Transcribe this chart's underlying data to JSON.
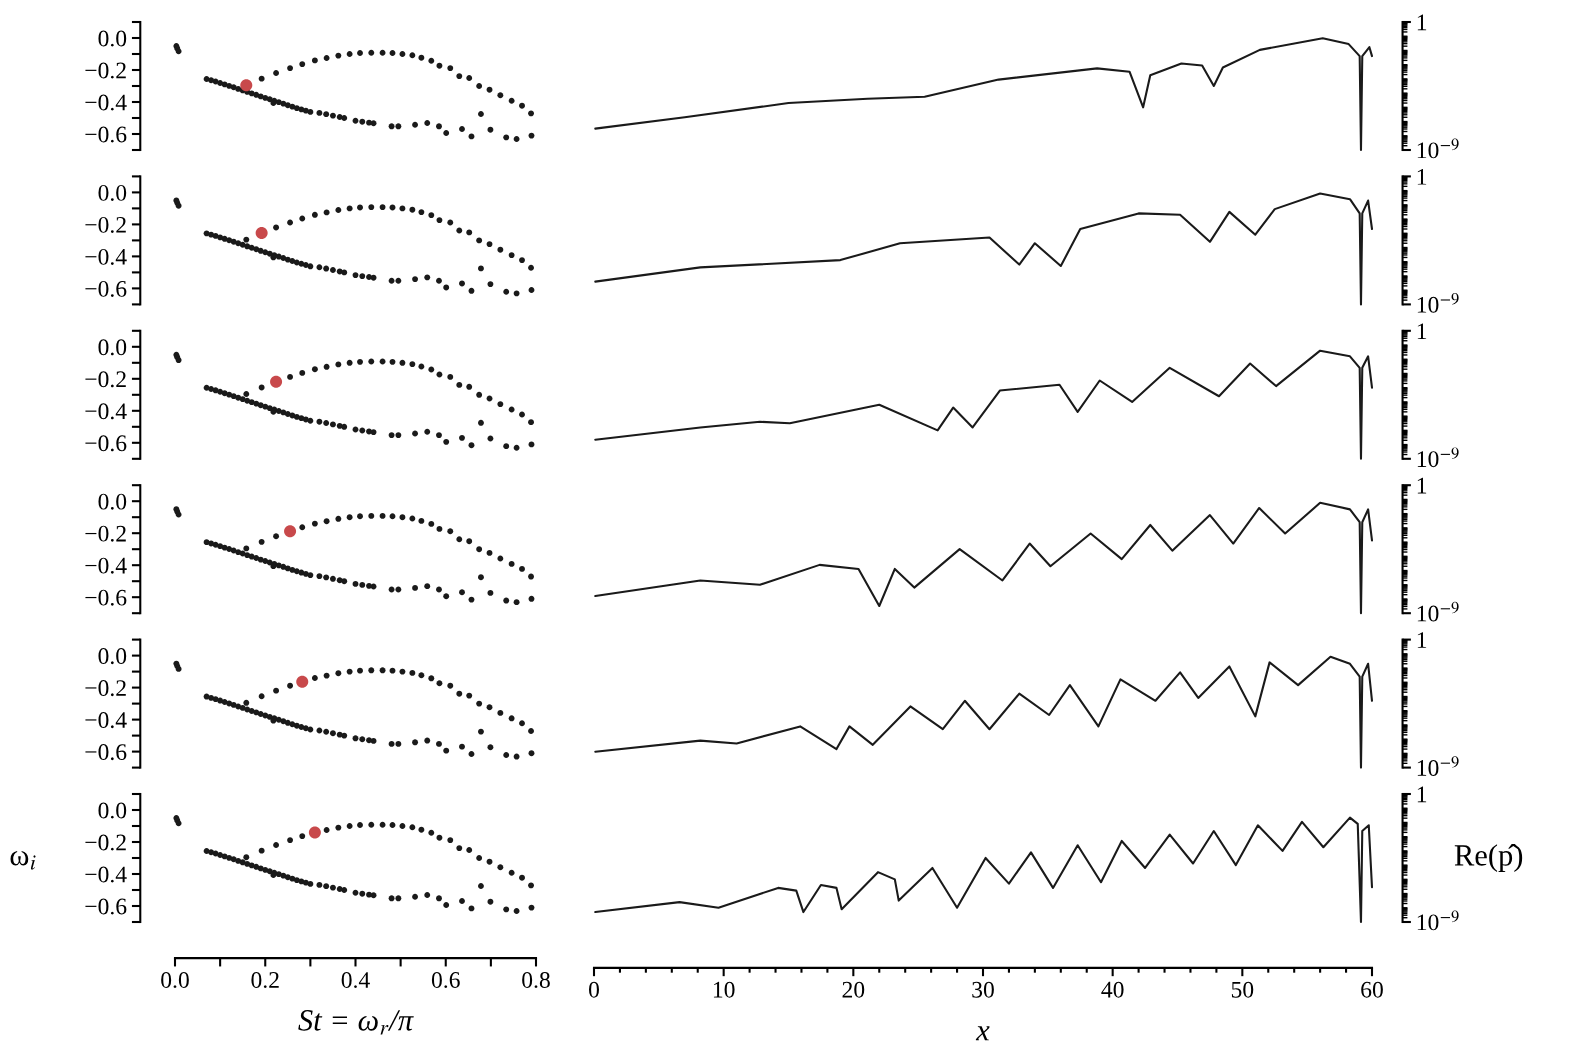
{
  "chart_data": [
    {
      "type": "scatter",
      "marker": "circle",
      "tick_labels": "y",
      "xlim": [
        0,
        0.8
      ],
      "ylim": [
        -0.7,
        0.1
      ],
      "yticks": [
        {
          "value": -0.6,
          "label": "−0.6"
        },
        {
          "value": -0.4,
          "label": "−0.4"
        },
        {
          "value": -0.2,
          "label": "−0.2"
        },
        {
          "value": 0,
          "label": "0.0"
        }
      ],
      "series": [
        {
          "color": "#1a1a1a",
          "x": [
            0.003,
            0.005,
            0.008,
            0.07,
            0.08,
            0.09,
            0.1,
            0.11,
            0.12,
            0.13,
            0.14,
            0.15,
            0.16,
            0.17,
            0.18,
            0.19,
            0.2,
            0.21,
            0.22,
            0.23,
            0.24,
            0.25,
            0.26,
            0.27,
            0.28,
            0.29,
            0.3,
            0.218,
            0.32,
            0.335,
            0.35,
            0.365,
            0.375,
            0.4,
            0.415,
            0.43,
            0.44,
            0.48,
            0.495,
            0.532,
            0.559,
            0.585,
            0.601,
            0.636,
            0.657,
            0.678,
            0.699,
            0.734,
            0.757,
            0.79,
            0.192,
            0.224,
            0.255,
            0.282,
            0.31,
            0.336,
            0.362,
            0.387,
            0.41,
            0.435,
            0.46,
            0.482,
            0.504,
            0.526,
            0.546,
            0.568,
            0.586,
            0.61,
            0.63,
            0.652,
            0.674,
            0.697,
            0.721,
            0.746,
            0.769,
            0.789
          ],
          "values": [
            -0.05,
            -0.065,
            -0.083,
            -0.256,
            -0.264,
            -0.272,
            -0.281,
            -0.29,
            -0.299,
            -0.308,
            -0.318,
            -0.327,
            -0.337,
            -0.346,
            -0.355,
            -0.365,
            -0.374,
            -0.383,
            -0.392,
            -0.401,
            -0.41,
            -0.42,
            -0.429,
            -0.438,
            -0.446,
            -0.454,
            -0.462,
            -0.406,
            -0.468,
            -0.476,
            -0.485,
            -0.494,
            -0.5,
            -0.517,
            -0.523,
            -0.529,
            -0.533,
            -0.552,
            -0.552,
            -0.542,
            -0.531,
            -0.552,
            -0.594,
            -0.569,
            -0.615,
            -0.475,
            -0.573,
            -0.621,
            -0.631,
            -0.61,
            -0.254,
            -0.219,
            -0.188,
            -0.163,
            -0.14,
            -0.125,
            -0.11,
            -0.1,
            -0.094,
            -0.092,
            -0.092,
            -0.094,
            -0.1,
            -0.108,
            -0.123,
            -0.142,
            -0.173,
            -0.188,
            -0.238,
            -0.25,
            -0.3,
            -0.323,
            -0.358,
            -0.392,
            -0.423,
            -0.471
          ]
        },
        {
          "color": "#c8494b",
          "x": [
            0.158
          ],
          "values": [
            -0.295
          ]
        }
      ]
    },
    {
      "type": "line",
      "log": "y",
      "line_style": "solid",
      "tick_labels": "y",
      "xlim": [
        0,
        60
      ],
      "ylim": [
        1e-09,
        1
      ],
      "yticks": [
        {
          "value": 1,
          "label": "1"
        },
        {
          "value": 1e-09,
          "label": "10$^{−9}$"
        }
      ],
      "series": [
        {
          "color": "#1a1a1a",
          "x": [
            0.1,
            7.0,
            15.0,
            21.1,
            25.5,
            31.2,
            38.8,
            41.3,
            42.35,
            42.9,
            45.3,
            46.9,
            47.8,
            48.5,
            51.35,
            56.2,
            58.2,
            59.05,
            59.15,
            59.25,
            59.8,
            60
          ],
          "values": [
            3.2e-08,
            2e-07,
            2e-06,
            4e-06,
            5.6e-06,
            8.9e-05,
            0.00055,
            0.00032,
            1e-06,
            0.00018,
            0.0012,
            0.00087,
            3.2e-05,
            0.00063,
            0.011,
            0.072,
            0.028,
            0.004,
            1e-09,
            0.004,
            0.017,
            0.004
          ]
        }
      ]
    },
    {
      "type": "scatter",
      "marker": "circle",
      "tick_labels": "y",
      "xlim": [
        0,
        0.8
      ],
      "ylim": [
        -0.7,
        0.1
      ],
      "yticks": [
        {
          "value": -0.6,
          "label": "−0.6"
        },
        {
          "value": -0.4,
          "label": "−0.4"
        },
        {
          "value": -0.2,
          "label": "−0.2"
        },
        {
          "value": 0,
          "label": "0.0"
        }
      ],
      "series": [
        {
          "color": "#1a1a1a",
          "x": [
            0.003,
            0.005,
            0.008,
            0.07,
            0.08,
            0.09,
            0.1,
            0.11,
            0.12,
            0.13,
            0.14,
            0.15,
            0.16,
            0.17,
            0.18,
            0.19,
            0.2,
            0.21,
            0.22,
            0.23,
            0.24,
            0.25,
            0.26,
            0.27,
            0.28,
            0.29,
            0.3,
            0.218,
            0.32,
            0.335,
            0.35,
            0.365,
            0.375,
            0.4,
            0.415,
            0.43,
            0.44,
            0.48,
            0.495,
            0.532,
            0.559,
            0.585,
            0.601,
            0.636,
            0.657,
            0.678,
            0.699,
            0.734,
            0.757,
            0.79,
            0.158,
            0.224,
            0.255,
            0.282,
            0.31,
            0.336,
            0.362,
            0.387,
            0.41,
            0.435,
            0.46,
            0.482,
            0.504,
            0.526,
            0.546,
            0.568,
            0.586,
            0.61,
            0.63,
            0.652,
            0.674,
            0.697,
            0.721,
            0.746,
            0.769,
            0.789
          ],
          "values": [
            -0.05,
            -0.065,
            -0.083,
            -0.256,
            -0.264,
            -0.272,
            -0.281,
            -0.29,
            -0.299,
            -0.308,
            -0.318,
            -0.327,
            -0.337,
            -0.346,
            -0.355,
            -0.365,
            -0.374,
            -0.383,
            -0.392,
            -0.401,
            -0.41,
            -0.42,
            -0.429,
            -0.438,
            -0.446,
            -0.454,
            -0.462,
            -0.406,
            -0.468,
            -0.476,
            -0.485,
            -0.494,
            -0.5,
            -0.517,
            -0.523,
            -0.529,
            -0.533,
            -0.552,
            -0.552,
            -0.542,
            -0.531,
            -0.552,
            -0.594,
            -0.569,
            -0.615,
            -0.475,
            -0.573,
            -0.621,
            -0.631,
            -0.61,
            -0.295,
            -0.219,
            -0.188,
            -0.163,
            -0.14,
            -0.125,
            -0.11,
            -0.1,
            -0.094,
            -0.092,
            -0.092,
            -0.094,
            -0.1,
            -0.108,
            -0.123,
            -0.142,
            -0.173,
            -0.188,
            -0.238,
            -0.25,
            -0.3,
            -0.323,
            -0.358,
            -0.392,
            -0.423,
            -0.471
          ]
        },
        {
          "color": "#c8494b",
          "x": [
            0.192
          ],
          "values": [
            -0.254
          ]
        }
      ]
    },
    {
      "type": "line",
      "log": "y",
      "line_style": "solid",
      "tick_labels": "y",
      "xlim": [
        0,
        60
      ],
      "ylim": [
        1e-09,
        1
      ],
      "yticks": [
        {
          "value": 1,
          "label": "1"
        },
        {
          "value": 1e-09,
          "label": "10$^{−9}$"
        }
      ],
      "series": [
        {
          "color": "#1a1a1a",
          "x": [
            0.1,
            8.2,
            19,
            23.6,
            30.5,
            32.8,
            34,
            36,
            37.5,
            42,
            45.2,
            47.5,
            49,
            51,
            52.5,
            56,
            58.3,
            59.05,
            59.15,
            59.25,
            59.7,
            60
          ],
          "values": [
            4e-08,
            4e-07,
            1.3e-06,
            2e-05,
            5e-05,
            6.3e-07,
            2e-05,
            5e-07,
            0.0002,
            0.0025,
            0.002,
            2.5e-05,
            0.0032,
            7.9e-05,
            0.005,
            0.063,
            0.025,
            0.0025,
            1e-09,
            0.0025,
            0.02,
            0.0002
          ]
        }
      ]
    },
    {
      "type": "scatter",
      "marker": "circle",
      "tick_labels": "y",
      "xlim": [
        0,
        0.8
      ],
      "ylim": [
        -0.7,
        0.1
      ],
      "yticks": [
        {
          "value": -0.6,
          "label": "−0.6"
        },
        {
          "value": -0.4,
          "label": "−0.4"
        },
        {
          "value": -0.2,
          "label": "−0.2"
        },
        {
          "value": 0,
          "label": "0.0"
        }
      ],
      "series": [
        {
          "color": "#1a1a1a",
          "x": [
            0.003,
            0.005,
            0.008,
            0.07,
            0.08,
            0.09,
            0.1,
            0.11,
            0.12,
            0.13,
            0.14,
            0.15,
            0.16,
            0.17,
            0.18,
            0.19,
            0.2,
            0.21,
            0.22,
            0.23,
            0.24,
            0.25,
            0.26,
            0.27,
            0.28,
            0.29,
            0.3,
            0.218,
            0.32,
            0.335,
            0.35,
            0.365,
            0.375,
            0.4,
            0.415,
            0.43,
            0.44,
            0.48,
            0.495,
            0.532,
            0.559,
            0.585,
            0.601,
            0.636,
            0.657,
            0.678,
            0.699,
            0.734,
            0.757,
            0.79,
            0.158,
            0.192,
            0.255,
            0.282,
            0.31,
            0.336,
            0.362,
            0.387,
            0.41,
            0.435,
            0.46,
            0.482,
            0.504,
            0.526,
            0.546,
            0.568,
            0.586,
            0.61,
            0.63,
            0.652,
            0.674,
            0.697,
            0.721,
            0.746,
            0.769,
            0.789
          ],
          "values": [
            -0.05,
            -0.065,
            -0.083,
            -0.256,
            -0.264,
            -0.272,
            -0.281,
            -0.29,
            -0.299,
            -0.308,
            -0.318,
            -0.327,
            -0.337,
            -0.346,
            -0.355,
            -0.365,
            -0.374,
            -0.383,
            -0.392,
            -0.401,
            -0.41,
            -0.42,
            -0.429,
            -0.438,
            -0.446,
            -0.454,
            -0.462,
            -0.406,
            -0.468,
            -0.476,
            -0.485,
            -0.494,
            -0.5,
            -0.517,
            -0.523,
            -0.529,
            -0.533,
            -0.552,
            -0.552,
            -0.542,
            -0.531,
            -0.552,
            -0.594,
            -0.569,
            -0.615,
            -0.475,
            -0.573,
            -0.621,
            -0.631,
            -0.61,
            -0.295,
            -0.254,
            -0.188,
            -0.163,
            -0.14,
            -0.125,
            -0.11,
            -0.1,
            -0.094,
            -0.092,
            -0.092,
            -0.094,
            -0.1,
            -0.108,
            -0.123,
            -0.142,
            -0.173,
            -0.188,
            -0.238,
            -0.25,
            -0.3,
            -0.323,
            -0.358,
            -0.392,
            -0.423,
            -0.471
          ]
        },
        {
          "color": "#c8494b",
          "x": [
            0.224
          ],
          "values": [
            -0.219
          ]
        }
      ]
    },
    {
      "type": "line",
      "log": "y",
      "line_style": "solid",
      "tick_labels": "y",
      "xlim": [
        0,
        60
      ],
      "ylim": [
        1e-09,
        1
      ],
      "yticks": [
        {
          "value": 1,
          "label": "1"
        },
        {
          "value": 1e-09,
          "label": "10$^{−9}$"
        }
      ],
      "series": [
        {
          "color": "#1a1a1a",
          "x": [
            0.1,
            8.2,
            12.8,
            15.1,
            22,
            26.5,
            27.7,
            29.2,
            31.3,
            35.9,
            37.3,
            39,
            41.5,
            44.4,
            48.2,
            50.6,
            52.6,
            56,
            58.3,
            59.05,
            59.15,
            59.25,
            59.7,
            60
          ],
          "values": [
            2.2e-08,
            1.6e-07,
            4e-07,
            3.2e-07,
            6.3e-06,
            1e-07,
            4e-06,
            1.6e-07,
            6.3e-05,
            0.00016,
            2e-06,
            0.00032,
            1e-05,
            0.0025,
            2.5e-05,
            0.005,
            0.00013,
            0.04,
            0.016,
            0.0025,
            1e-09,
            0.0025,
            0.016,
            0.0001
          ]
        }
      ]
    },
    {
      "type": "scatter",
      "marker": "circle",
      "tick_labels": "y",
      "xlim": [
        0,
        0.8
      ],
      "ylim": [
        -0.7,
        0.1
      ],
      "yticks": [
        {
          "value": -0.6,
          "label": "−0.6"
        },
        {
          "value": -0.4,
          "label": "−0.4"
        },
        {
          "value": -0.2,
          "label": "−0.2"
        },
        {
          "value": 0,
          "label": "0.0"
        }
      ],
      "series": [
        {
          "color": "#1a1a1a",
          "x": [
            0.003,
            0.005,
            0.008,
            0.07,
            0.08,
            0.09,
            0.1,
            0.11,
            0.12,
            0.13,
            0.14,
            0.15,
            0.16,
            0.17,
            0.18,
            0.19,
            0.2,
            0.21,
            0.22,
            0.23,
            0.24,
            0.25,
            0.26,
            0.27,
            0.28,
            0.29,
            0.3,
            0.218,
            0.32,
            0.335,
            0.35,
            0.365,
            0.375,
            0.4,
            0.415,
            0.43,
            0.44,
            0.48,
            0.495,
            0.532,
            0.559,
            0.585,
            0.601,
            0.636,
            0.657,
            0.678,
            0.699,
            0.734,
            0.757,
            0.79,
            0.158,
            0.192,
            0.224,
            0.282,
            0.31,
            0.336,
            0.362,
            0.387,
            0.41,
            0.435,
            0.46,
            0.482,
            0.504,
            0.526,
            0.546,
            0.568,
            0.586,
            0.61,
            0.63,
            0.652,
            0.674,
            0.697,
            0.721,
            0.746,
            0.769,
            0.789
          ],
          "values": [
            -0.05,
            -0.065,
            -0.083,
            -0.256,
            -0.264,
            -0.272,
            -0.281,
            -0.29,
            -0.299,
            -0.308,
            -0.318,
            -0.327,
            -0.337,
            -0.346,
            -0.355,
            -0.365,
            -0.374,
            -0.383,
            -0.392,
            -0.401,
            -0.41,
            -0.42,
            -0.429,
            -0.438,
            -0.446,
            -0.454,
            -0.462,
            -0.406,
            -0.468,
            -0.476,
            -0.485,
            -0.494,
            -0.5,
            -0.517,
            -0.523,
            -0.529,
            -0.533,
            -0.552,
            -0.552,
            -0.542,
            -0.531,
            -0.552,
            -0.594,
            -0.569,
            -0.615,
            -0.475,
            -0.573,
            -0.621,
            -0.631,
            -0.61,
            -0.295,
            -0.254,
            -0.219,
            -0.163,
            -0.14,
            -0.125,
            -0.11,
            -0.1,
            -0.094,
            -0.092,
            -0.092,
            -0.094,
            -0.1,
            -0.108,
            -0.123,
            -0.142,
            -0.173,
            -0.188,
            -0.238,
            -0.25,
            -0.3,
            -0.323,
            -0.358,
            -0.392,
            -0.423,
            -0.471
          ]
        },
        {
          "color": "#c8494b",
          "x": [
            0.255
          ],
          "values": [
            -0.188
          ]
        }
      ]
    },
    {
      "type": "line",
      "log": "y",
      "line_style": "solid",
      "tick_labels": "y",
      "xlim": [
        0,
        60
      ],
      "ylim": [
        1e-09,
        1
      ],
      "yticks": [
        {
          "value": 1,
          "label": "1"
        },
        {
          "value": 1e-09,
          "label": "10$^{−9}$"
        }
      ],
      "series": [
        {
          "color": "#1a1a1a",
          "x": [
            0.1,
            8.2,
            12.8,
            17.4,
            20.4,
            22,
            23.2,
            24.7,
            28.2,
            31.5,
            33.6,
            35.2,
            38.3,
            40.7,
            42.9,
            44.6,
            47.5,
            49.3,
            51.3,
            53.3,
            56,
            58.3,
            59.05,
            59.15,
            59.25,
            59.7,
            60
          ],
          "values": [
            1.6e-08,
            2e-07,
            1e-07,
            2.5e-06,
            1.3e-06,
            3.2e-09,
            1.3e-06,
            6.3e-08,
            3.2e-05,
            2e-07,
            7.9e-05,
            2e-06,
            0.0004,
            6.3e-06,
            0.0016,
            2.5e-05,
            0.0079,
            7.9e-05,
            0.025,
            0.0004,
            0.058,
            0.02,
            0.0025,
            1e-09,
            0.0025,
            0.02,
            0.00013
          ]
        }
      ]
    },
    {
      "type": "scatter",
      "marker": "circle",
      "tick_labels": "y",
      "xlim": [
        0,
        0.8
      ],
      "ylim": [
        -0.7,
        0.1
      ],
      "yticks": [
        {
          "value": -0.6,
          "label": "−0.6"
        },
        {
          "value": -0.4,
          "label": "−0.4"
        },
        {
          "value": -0.2,
          "label": "−0.2"
        },
        {
          "value": 0,
          "label": "0.0"
        }
      ],
      "series": [
        {
          "color": "#1a1a1a",
          "x": [
            0.003,
            0.005,
            0.008,
            0.07,
            0.08,
            0.09,
            0.1,
            0.11,
            0.12,
            0.13,
            0.14,
            0.15,
            0.16,
            0.17,
            0.18,
            0.19,
            0.2,
            0.21,
            0.22,
            0.23,
            0.24,
            0.25,
            0.26,
            0.27,
            0.28,
            0.29,
            0.3,
            0.218,
            0.32,
            0.335,
            0.35,
            0.365,
            0.375,
            0.4,
            0.415,
            0.43,
            0.44,
            0.48,
            0.495,
            0.532,
            0.559,
            0.585,
            0.601,
            0.636,
            0.657,
            0.678,
            0.699,
            0.734,
            0.757,
            0.79,
            0.158,
            0.192,
            0.224,
            0.255,
            0.31,
            0.336,
            0.362,
            0.387,
            0.41,
            0.435,
            0.46,
            0.482,
            0.504,
            0.526,
            0.546,
            0.568,
            0.586,
            0.61,
            0.63,
            0.652,
            0.674,
            0.697,
            0.721,
            0.746,
            0.769,
            0.789
          ],
          "values": [
            -0.05,
            -0.065,
            -0.083,
            -0.256,
            -0.264,
            -0.272,
            -0.281,
            -0.29,
            -0.299,
            -0.308,
            -0.318,
            -0.327,
            -0.337,
            -0.346,
            -0.355,
            -0.365,
            -0.374,
            -0.383,
            -0.392,
            -0.401,
            -0.41,
            -0.42,
            -0.429,
            -0.438,
            -0.446,
            -0.454,
            -0.462,
            -0.406,
            -0.468,
            -0.476,
            -0.485,
            -0.494,
            -0.5,
            -0.517,
            -0.523,
            -0.529,
            -0.533,
            -0.552,
            -0.552,
            -0.542,
            -0.531,
            -0.552,
            -0.594,
            -0.569,
            -0.615,
            -0.475,
            -0.573,
            -0.621,
            -0.631,
            -0.61,
            -0.295,
            -0.254,
            -0.219,
            -0.188,
            -0.14,
            -0.125,
            -0.11,
            -0.1,
            -0.094,
            -0.092,
            -0.092,
            -0.094,
            -0.1,
            -0.108,
            -0.123,
            -0.142,
            -0.173,
            -0.188,
            -0.238,
            -0.25,
            -0.3,
            -0.323,
            -0.358,
            -0.392,
            -0.423,
            -0.471
          ]
        },
        {
          "color": "#c8494b",
          "x": [
            0.282
          ],
          "values": [
            -0.163
          ]
        }
      ]
    },
    {
      "type": "line",
      "log": "y",
      "line_style": "solid",
      "tick_labels": "y",
      "xlim": [
        0,
        60
      ],
      "ylim": [
        1e-09,
        1
      ],
      "yticks": [
        {
          "value": 1,
          "label": "1"
        },
        {
          "value": 1e-09,
          "label": "10$^{−9}$"
        }
      ],
      "series": [
        {
          "color": "#1a1a1a",
          "x": [
            0.1,
            8.2,
            11,
            15.9,
            18.7,
            19.7,
            21.5,
            24.4,
            26.9,
            28.6,
            30.5,
            32.8,
            35.1,
            36.7,
            38.9,
            40.6,
            43.3,
            45.2,
            46.6,
            49,
            51,
            52.1,
            54.3,
            56.8,
            58.3,
            59.05,
            59.15,
            59.25,
            59.7,
            60
          ],
          "values": [
            1.3e-08,
            7.9e-08,
            5e-08,
            7.9e-07,
            2e-08,
            7.9e-07,
            4e-08,
            2e-05,
            5e-07,
            5e-05,
            5e-07,
            0.00016,
            5e-06,
            0.00063,
            7.9e-07,
            0.0016,
            5e-05,
            0.005,
            7.9e-05,
            0.013,
            4e-06,
            0.025,
            0.00063,
            0.063,
            0.02,
            0.0025,
            1e-09,
            0.0025,
            0.02,
            5e-05
          ]
        }
      ]
    },
    {
      "type": "scatter",
      "marker": "circle",
      "xlabel": "St = ω$_{r}$/π",
      "ylabel": "ω$_{i}$",
      "xlim": [
        0,
        0.8
      ],
      "ylim": [
        -0.7,
        0.1
      ],
      "xticks": [
        {
          "value": 0,
          "label": "0.0"
        },
        {
          "value": 0.2,
          "label": "0.2"
        },
        {
          "value": 0.4,
          "label": "0.4"
        },
        {
          "value": 0.6,
          "label": "0.6"
        },
        {
          "value": 0.8,
          "label": "0.8"
        }
      ],
      "yticks": [
        {
          "value": -0.6,
          "label": "−0.6"
        },
        {
          "value": -0.4,
          "label": "−0.4"
        },
        {
          "value": -0.2,
          "label": "−0.2"
        },
        {
          "value": 0,
          "label": "0.0"
        }
      ],
      "series": [
        {
          "color": "#1a1a1a",
          "x": [
            0.003,
            0.005,
            0.008,
            0.07,
            0.08,
            0.09,
            0.1,
            0.11,
            0.12,
            0.13,
            0.14,
            0.15,
            0.16,
            0.17,
            0.18,
            0.19,
            0.2,
            0.21,
            0.22,
            0.23,
            0.24,
            0.25,
            0.26,
            0.27,
            0.28,
            0.29,
            0.3,
            0.218,
            0.32,
            0.335,
            0.35,
            0.365,
            0.375,
            0.4,
            0.415,
            0.43,
            0.44,
            0.48,
            0.495,
            0.532,
            0.559,
            0.585,
            0.601,
            0.636,
            0.657,
            0.678,
            0.699,
            0.734,
            0.757,
            0.79,
            0.158,
            0.192,
            0.224,
            0.255,
            0.282,
            0.336,
            0.362,
            0.387,
            0.41,
            0.435,
            0.46,
            0.482,
            0.504,
            0.526,
            0.546,
            0.568,
            0.586,
            0.61,
            0.63,
            0.652,
            0.674,
            0.697,
            0.721,
            0.746,
            0.769,
            0.789
          ],
          "values": [
            -0.05,
            -0.065,
            -0.083,
            -0.256,
            -0.264,
            -0.272,
            -0.281,
            -0.29,
            -0.299,
            -0.308,
            -0.318,
            -0.327,
            -0.337,
            -0.346,
            -0.355,
            -0.365,
            -0.374,
            -0.383,
            -0.392,
            -0.401,
            -0.41,
            -0.42,
            -0.429,
            -0.438,
            -0.446,
            -0.454,
            -0.462,
            -0.406,
            -0.468,
            -0.476,
            -0.485,
            -0.494,
            -0.5,
            -0.517,
            -0.523,
            -0.529,
            -0.533,
            -0.552,
            -0.552,
            -0.542,
            -0.531,
            -0.552,
            -0.594,
            -0.569,
            -0.615,
            -0.475,
            -0.573,
            -0.621,
            -0.631,
            -0.61,
            -0.295,
            -0.254,
            -0.219,
            -0.188,
            -0.163,
            -0.125,
            -0.11,
            -0.1,
            -0.094,
            -0.092,
            -0.092,
            -0.094,
            -0.1,
            -0.108,
            -0.123,
            -0.142,
            -0.173,
            -0.188,
            -0.238,
            -0.25,
            -0.3,
            -0.323,
            -0.358,
            -0.392,
            -0.423,
            -0.471
          ]
        },
        {
          "color": "#c8494b",
          "x": [
            0.31
          ],
          "values": [
            -0.14
          ]
        }
      ]
    },
    {
      "type": "line",
      "log": "y",
      "line_style": "solid",
      "xlabel": "x",
      "ylabel": "Re(p̂)",
      "xlim": [
        0,
        60
      ],
      "ylim": [
        1e-09,
        1
      ],
      "xticks": [
        0,
        10,
        20,
        30,
        40,
        50,
        60
      ],
      "yticks": [
        {
          "value": 1,
          "label": "1"
        },
        {
          "value": 1e-09,
          "label": "10$^{−9}$"
        }
      ],
      "series": [
        {
          "color": "#1a1a1a",
          "x": [
            0.1,
            6.6,
            9.6,
            14.2,
            15.6,
            16.15,
            17.5,
            18.7,
            19.1,
            21.9,
            23.2,
            23.5,
            26.1,
            28.0,
            30.2,
            32.0,
            33.7,
            35.4,
            37.3,
            39.1,
            40.7,
            42.5,
            44.4,
            46.2,
            47.8,
            49.5,
            51.2,
            53.1,
            54.6,
            56.25,
            58.3,
            58.9,
            59.15,
            59.25,
            59.75,
            60
          ],
          "values": [
            5e-09,
            2.5e-08,
            1e-08,
            2.5e-07,
            1.6e-07,
            5e-09,
            4e-07,
            2.5e-07,
            7.9e-09,
            3.2e-06,
            1e-06,
            3.2e-08,
            6.3e-06,
            1e-08,
            3.2e-05,
            5e-07,
            7.9e-05,
            2.5e-07,
            0.00025,
            6.3e-07,
            0.0005,
            6.3e-06,
            0.0014,
            1.3e-05,
            0.0025,
            1e-05,
            0.0063,
            0.0001,
            0.011,
            0.00018,
            0.022,
            0.0079,
            1e-09,
            0.0025,
            0.0063,
            2.8e-07
          ]
        }
      ]
    }
  ]
}
